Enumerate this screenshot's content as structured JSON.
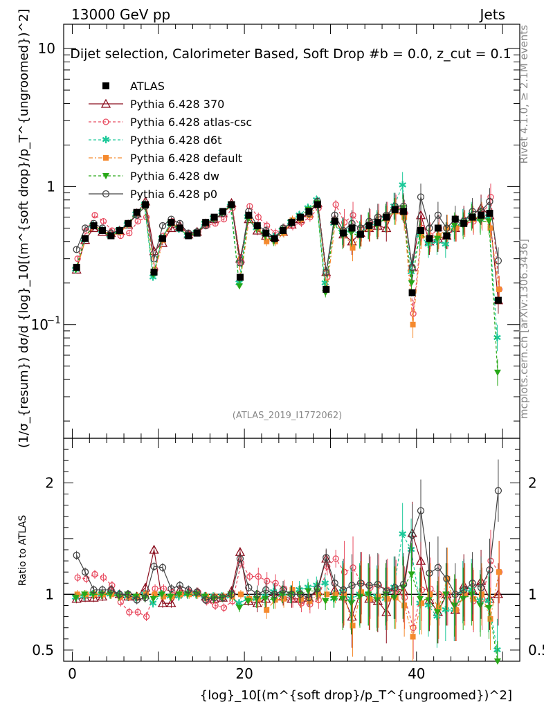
{
  "header": {
    "left": "13000 GeV pp",
    "right": "Jets"
  },
  "plot_title": "Dijet selection, Calorimeter Based, Soft Drop #b = 0.0, z_cut = 0.1",
  "side_labels": {
    "rivet": "Rivet 4.1.0, ≥ 2.1M events",
    "source": "mcplots.cern.ch [arXiv:1306.3436]"
  },
  "watermark": "(ATLAS_2019_I1772062)",
  "colors": {
    "atlas": "#000000",
    "p370": "#8b0e1e",
    "atlascsc": "#e84a5f",
    "d6t": "#1ec99a",
    "default": "#f58a2e",
    "dw": "#28a818",
    "p0": "#444444"
  },
  "chart_data": [
    {
      "type": "line",
      "scale": "log",
      "ylabel": "(1/σ_{resum}) dσ/d {log}_10[(m^{soft drop}/p_T^{ungroomed})^2]",
      "ylim": [
        0.015,
        15
      ],
      "yticks": [
        "10^-1",
        "1",
        "10"
      ],
      "x": [
        0.5,
        1.5,
        2.5,
        3.5,
        4.5,
        5.5,
        6.5,
        7.5,
        8.5,
        9.5,
        10.5,
        11.5,
        12.5,
        13.5,
        14.5,
        15.5,
        16.5,
        17.5,
        18.5,
        19.5,
        20.5,
        21.5,
        22.5,
        23.5,
        24.5,
        25.5,
        26.5,
        27.5,
        28.5,
        29.5,
        30.5,
        31.5,
        32.5,
        33.5,
        34.5,
        35.5,
        36.5,
        37.5,
        38.5,
        39.5,
        40.5,
        41.5,
        42.5,
        43.5,
        44.5,
        45.5,
        46.5,
        47.5,
        48.5,
        49.5
      ],
      "series": [
        {
          "name": "ATLAS",
          "key": "atlas",
          "values": [
            0.26,
            0.42,
            0.52,
            0.48,
            0.44,
            0.48,
            0.54,
            0.65,
            0.74,
            0.24,
            0.42,
            0.55,
            0.5,
            0.44,
            0.46,
            0.55,
            0.6,
            0.66,
            0.74,
            0.22,
            0.62,
            0.52,
            0.46,
            0.42,
            0.48,
            0.55,
            0.6,
            0.66,
            0.74,
            0.18,
            0.56,
            0.46,
            0.5,
            0.45,
            0.52,
            0.55,
            0.6,
            0.68,
            0.66,
            0.17,
            0.48,
            0.42,
            0.5,
            0.44,
            0.58,
            0.54,
            0.6,
            0.62,
            0.64,
            0.15
          ]
        },
        {
          "name": "Pythia 6.428 370",
          "key": "p370",
          "values": [
            0.25,
            0.41,
            0.5,
            0.47,
            0.46,
            0.48,
            0.53,
            0.64,
            0.78,
            0.34,
            0.39,
            0.5,
            0.52,
            0.45,
            0.47,
            0.54,
            0.58,
            0.64,
            0.76,
            0.3,
            0.58,
            0.48,
            0.44,
            0.43,
            0.47,
            0.53,
            0.58,
            0.64,
            0.76,
            0.24,
            0.58,
            0.45,
            0.4,
            0.46,
            0.5,
            0.52,
            0.5,
            0.72,
            0.68,
            0.26,
            0.62,
            0.4,
            0.42,
            0.44,
            0.5,
            0.58,
            0.62,
            0.7,
            0.62,
            0.15
          ]
        },
        {
          "name": "Pythia 6.428 atlas-csc",
          "key": "atlascsc",
          "values": [
            0.3,
            0.48,
            0.62,
            0.56,
            0.48,
            0.44,
            0.46,
            0.56,
            0.6,
            0.25,
            0.44,
            0.56,
            0.5,
            0.45,
            0.47,
            0.52,
            0.54,
            0.58,
            0.7,
            0.28,
            0.72,
            0.6,
            0.52,
            0.46,
            0.5,
            0.52,
            0.55,
            0.6,
            0.7,
            0.22,
            0.74,
            0.55,
            0.62,
            0.5,
            0.55,
            0.6,
            0.62,
            0.7,
            0.64,
            0.12,
            0.5,
            0.44,
            0.5,
            0.44,
            0.5,
            0.54,
            0.56,
            0.6,
            0.84,
            0.18
          ]
        },
        {
          "name": "Pythia 6.428 d6t",
          "key": "d6t",
          "values": [
            0.25,
            0.41,
            0.52,
            0.48,
            0.44,
            0.48,
            0.53,
            0.63,
            0.74,
            0.22,
            0.42,
            0.54,
            0.49,
            0.44,
            0.46,
            0.54,
            0.59,
            0.65,
            0.72,
            0.2,
            0.6,
            0.5,
            0.45,
            0.43,
            0.48,
            0.55,
            0.62,
            0.7,
            0.8,
            0.2,
            0.54,
            0.47,
            0.48,
            0.45,
            0.52,
            0.54,
            0.58,
            0.72,
            1.02,
            0.24,
            0.44,
            0.38,
            0.4,
            0.38,
            0.5,
            0.55,
            0.62,
            0.58,
            0.6,
            0.08
          ]
        },
        {
          "name": "Pythia 6.428 default",
          "key": "default",
          "values": [
            0.26,
            0.42,
            0.52,
            0.48,
            0.44,
            0.47,
            0.53,
            0.64,
            0.74,
            0.24,
            0.41,
            0.54,
            0.5,
            0.44,
            0.46,
            0.54,
            0.59,
            0.65,
            0.73,
            0.22,
            0.6,
            0.5,
            0.4,
            0.4,
            0.46,
            0.57,
            0.58,
            0.62,
            0.74,
            0.18,
            0.56,
            0.46,
            0.36,
            0.46,
            0.5,
            0.54,
            0.58,
            0.66,
            0.6,
            0.1,
            0.44,
            0.42,
            0.44,
            0.5,
            0.5,
            0.54,
            0.58,
            0.62,
            0.5,
            0.18
          ]
        },
        {
          "name": "Pythia 6.428 dw",
          "key": "dw",
          "values": [
            0.25,
            0.42,
            0.52,
            0.48,
            0.44,
            0.47,
            0.54,
            0.64,
            0.72,
            0.23,
            0.42,
            0.54,
            0.5,
            0.44,
            0.46,
            0.54,
            0.58,
            0.64,
            0.74,
            0.19,
            0.58,
            0.5,
            0.44,
            0.4,
            0.48,
            0.55,
            0.6,
            0.68,
            0.76,
            0.17,
            0.54,
            0.44,
            0.46,
            0.44,
            0.52,
            0.52,
            0.6,
            0.66,
            0.7,
            0.2,
            0.46,
            0.4,
            0.42,
            0.44,
            0.52,
            0.52,
            0.6,
            0.56,
            0.56,
            0.045
          ]
        },
        {
          "name": "Pythia 6.428 p0",
          "key": "p0",
          "values": [
            0.35,
            0.5,
            0.54,
            0.5,
            0.46,
            0.48,
            0.54,
            0.62,
            0.72,
            0.3,
            0.52,
            0.58,
            0.54,
            0.46,
            0.47,
            0.52,
            0.58,
            0.64,
            0.74,
            0.28,
            0.66,
            0.52,
            0.48,
            0.42,
            0.5,
            0.55,
            0.6,
            0.64,
            0.78,
            0.24,
            0.62,
            0.48,
            0.54,
            0.5,
            0.56,
            0.6,
            0.62,
            0.72,
            0.72,
            0.26,
            0.84,
            0.5,
            0.62,
            0.5,
            0.58,
            0.56,
            0.66,
            0.66,
            0.78,
            0.29
          ]
        }
      ]
    },
    {
      "type": "line",
      "scale": "linear",
      "ylabel": "Ratio to ATLAS",
      "ylim": [
        0.4,
        2.4
      ],
      "yticks": [
        0.5,
        1,
        2
      ],
      "xlabel": "{log}_10[(m^{soft drop}/p_T^{ungroomed})^2]",
      "xlim": [
        -1,
        52
      ],
      "xticks": [
        0,
        20,
        40
      ],
      "reference": 1,
      "series": [
        {
          "key": "p370",
          "values": [
            0.96,
            0.97,
            0.97,
            0.98,
            1.04,
            1.0,
            0.98,
            0.98,
            1.06,
            1.4,
            0.92,
            0.92,
            1.04,
            1.02,
            1.02,
            0.98,
            0.96,
            0.97,
            1.03,
            1.38,
            0.94,
            0.92,
            0.96,
            1.02,
            0.98,
            0.96,
            0.96,
            0.97,
            1.03,
            1.32,
            1.04,
            0.98,
            0.8,
            1.02,
            0.96,
            0.94,
            0.84,
            1.06,
            1.03,
            1.55,
            1.3,
            0.95,
            0.84,
            1.0,
            0.86,
            1.08,
            1.04,
            1.12,
            0.96,
            1.0
          ]
        },
        {
          "key": "atlascsc",
          "values": [
            1.15,
            1.14,
            1.18,
            1.15,
            1.08,
            0.93,
            0.84,
            0.84,
            0.8,
            1.05,
            1.05,
            1.02,
            1.0,
            1.02,
            1.02,
            0.94,
            0.9,
            0.88,
            0.94,
            1.28,
            1.16,
            1.16,
            1.12,
            1.1,
            1.05,
            0.96,
            0.92,
            0.91,
            0.95,
            1.25,
            1.32,
            1.2,
            1.24,
            1.1,
            1.06,
            1.08,
            1.04,
            1.03,
            0.97,
            0.7,
            1.04,
            1.05,
            1.0,
            1.0,
            0.86,
            1.0,
            0.94,
            0.96,
            1.3,
            1.2
          ]
        },
        {
          "key": "d6t",
          "values": [
            0.97,
            0.98,
            1.0,
            1.0,
            1.0,
            1.0,
            0.98,
            0.97,
            1.0,
            0.92,
            1.0,
            0.98,
            0.98,
            1.0,
            1.0,
            0.98,
            0.98,
            0.98,
            0.98,
            0.92,
            0.96,
            0.96,
            0.98,
            1.02,
            1.0,
            1.0,
            1.04,
            1.06,
            1.08,
            1.1,
            0.96,
            1.02,
            0.96,
            1.0,
            1.0,
            0.98,
            0.96,
            1.06,
            1.54,
            1.4,
            0.92,
            0.9,
            0.8,
            0.86,
            0.86,
            1.02,
            1.04,
            0.94,
            0.94,
            0.5
          ]
        },
        {
          "key": "default",
          "values": [
            1.0,
            1.0,
            1.0,
            1.0,
            1.0,
            0.98,
            0.98,
            0.98,
            1.0,
            1.0,
            0.98,
            0.98,
            1.0,
            1.0,
            1.0,
            0.98,
            0.98,
            0.98,
            0.98,
            1.0,
            0.96,
            0.96,
            0.86,
            0.95,
            0.96,
            1.04,
            0.96,
            0.94,
            1.0,
            1.0,
            1.0,
            1.0,
            0.72,
            1.02,
            0.96,
            0.98,
            0.96,
            0.97,
            0.9,
            0.62,
            0.92,
            1.0,
            0.88,
            1.14,
            0.86,
            1.0,
            0.96,
            1.0,
            0.78,
            1.2
          ]
        },
        {
          "key": "dw",
          "values": [
            0.97,
            1.0,
            1.0,
            1.0,
            1.0,
            0.98,
            1.0,
            0.98,
            0.97,
            0.96,
            1.0,
            0.98,
            1.0,
            1.0,
            1.0,
            0.98,
            0.96,
            0.97,
            1.0,
            0.88,
            0.94,
            0.96,
            0.96,
            0.95,
            1.0,
            1.0,
            1.0,
            1.03,
            1.03,
            0.94,
            0.96,
            0.96,
            0.92,
            0.98,
            1.0,
            0.95,
            1.0,
            0.97,
            1.06,
            1.18,
            0.96,
            0.95,
            0.84,
            1.0,
            0.9,
            0.96,
            1.0,
            0.9,
            0.88,
            0.3
          ]
        },
        {
          "key": "p0",
          "values": [
            1.35,
            1.2,
            1.04,
            1.04,
            1.04,
            1.0,
            1.0,
            0.95,
            0.97,
            1.25,
            1.24,
            1.05,
            1.08,
            1.04,
            1.02,
            0.95,
            0.97,
            0.97,
            1.0,
            1.32,
            1.06,
            1.0,
            1.04,
            1.0,
            1.04,
            1.0,
            1.0,
            0.97,
            1.05,
            1.33,
            1.1,
            1.04,
            1.08,
            1.1,
            1.08,
            1.09,
            1.03,
            1.06,
            1.09,
            1.53,
            1.75,
            1.19,
            1.24,
            1.14,
            1.0,
            1.04,
            1.1,
            1.06,
            1.22,
            1.93
          ]
        }
      ]
    }
  ]
}
